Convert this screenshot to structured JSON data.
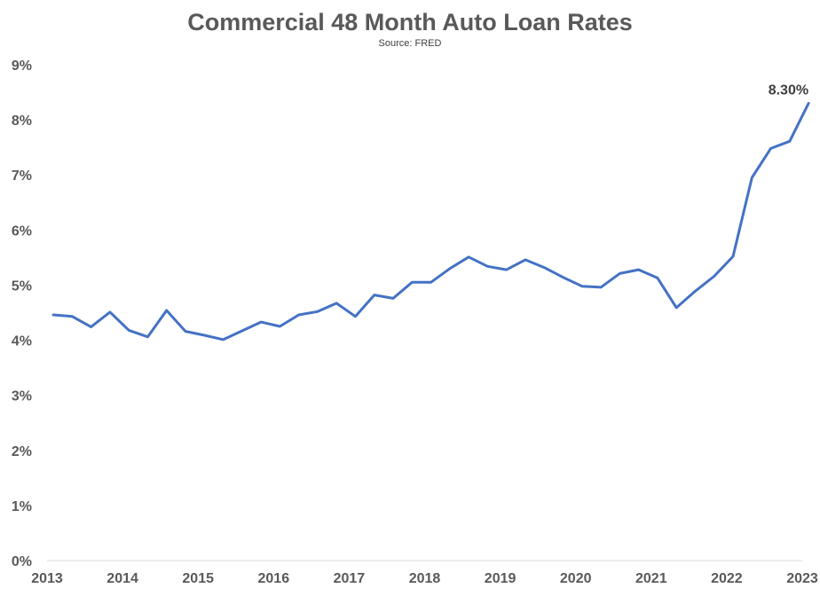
{
  "chart_data": {
    "type": "line",
    "title": "Commercial 48 Month Auto Loan Rates",
    "subtitle": "Source: FRED",
    "xlabel": "",
    "ylabel": "",
    "xlim": [
      2013,
      2023
    ],
    "ylim": [
      0,
      9
    ],
    "y_ticks": [
      "0%",
      "1%",
      "2%",
      "3%",
      "4%",
      "5%",
      "6%",
      "7%",
      "8%",
      "9%"
    ],
    "x_ticks": [
      "2013",
      "2014",
      "2015",
      "2016",
      "2017",
      "2018",
      "2019",
      "2020",
      "2021",
      "2022",
      "2023"
    ],
    "grid": false,
    "line_color": "#4472C4",
    "series": [
      {
        "x": [
          "2013-02",
          "2013-05",
          "2013-08",
          "2013-11",
          "2014-02",
          "2014-05",
          "2014-08",
          "2014-11",
          "2015-02",
          "2015-05",
          "2015-08",
          "2015-11",
          "2016-02",
          "2016-05",
          "2016-08",
          "2016-11",
          "2017-02",
          "2017-05",
          "2017-08",
          "2017-11",
          "2018-02",
          "2018-05",
          "2018-08",
          "2018-11",
          "2019-02",
          "2019-05",
          "2019-08",
          "2019-11",
          "2020-02",
          "2020-05",
          "2020-08",
          "2020-11",
          "2021-02",
          "2021-05",
          "2021-08",
          "2021-11",
          "2022-02",
          "2022-05",
          "2022-08",
          "2022-11",
          "2023-02"
        ],
        "values": [
          4.46,
          4.43,
          4.24,
          4.51,
          4.18,
          4.06,
          4.54,
          4.16,
          4.09,
          4.01,
          4.17,
          4.33,
          4.25,
          4.46,
          4.52,
          4.67,
          4.43,
          4.82,
          4.76,
          5.05,
          5.05,
          5.3,
          5.51,
          5.34,
          5.28,
          5.46,
          5.32,
          5.14,
          4.98,
          4.96,
          5.21,
          5.28,
          5.13,
          4.59,
          4.89,
          5.16,
          5.52,
          6.95,
          7.48,
          7.61,
          8.3
        ]
      }
    ],
    "annotations": [
      {
        "text": "8.30%",
        "x": "2023-02",
        "y": 8.3
      }
    ]
  }
}
